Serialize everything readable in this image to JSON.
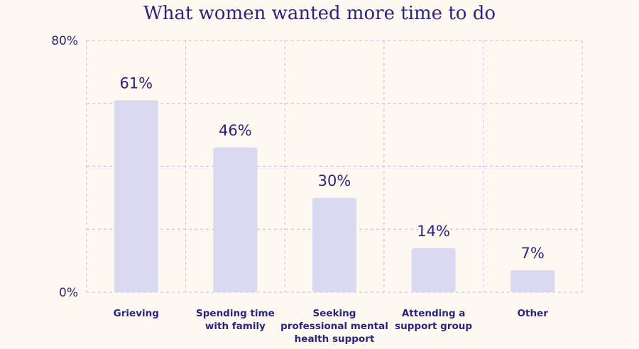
{
  "chart_data": {
    "type": "bar",
    "title": "What women wanted more time to do",
    "categories": [
      [
        "Grieving"
      ],
      [
        "Spending time",
        "with family"
      ],
      [
        "Seeking",
        "professional mental",
        "health support"
      ],
      [
        "Attending a",
        "support group"
      ],
      [
        "Other"
      ]
    ],
    "values": [
      61,
      46,
      30,
      14,
      7
    ],
    "value_labels": [
      "61%",
      "46%",
      "30%",
      "14%",
      "7%"
    ],
    "ylim": [
      0,
      80
    ],
    "y_tick_labels": [
      {
        "value": 80,
        "label": "80%"
      },
      {
        "value": 0,
        "label": "0%"
      }
    ],
    "gridlines": [
      0,
      20,
      40,
      60,
      80
    ],
    "grid": true,
    "colors": {
      "bar": "#d9d9f1",
      "grid": "#cbc7ee",
      "text": "#2b2580",
      "background": "#fdf9f1"
    }
  }
}
